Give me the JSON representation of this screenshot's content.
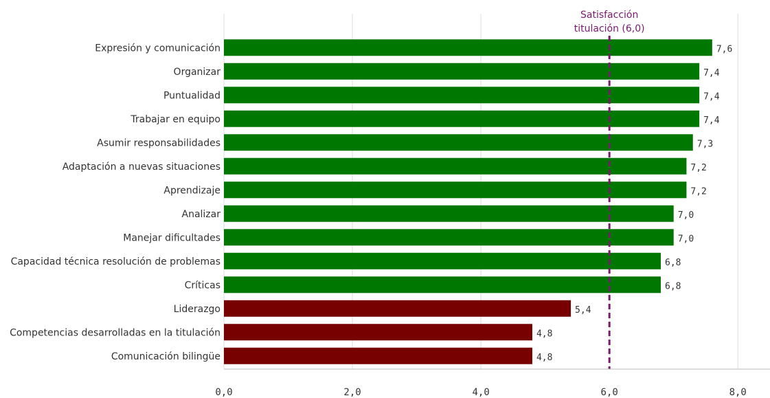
{
  "chart_data": {
    "type": "bar",
    "orientation": "horizontal",
    "categories": [
      "Expresión y comunicación",
      "Organizar",
      "Puntualidad",
      "Trabajar en equipo",
      "Asumir responsabilidades",
      "Adaptación a nuevas situaciones",
      "Aprendizaje",
      "Analizar",
      "Manejar dificultades",
      "Capacidad técnica resolución de problemas",
      "Críticas",
      "Liderazgo",
      "Competencias desarrolladas en la titulación",
      "Comunicación bilingüe"
    ],
    "values": [
      7.6,
      7.4,
      7.4,
      7.4,
      7.3,
      7.2,
      7.2,
      7.0,
      7.0,
      6.8,
      6.8,
      5.4,
      4.8,
      4.8
    ],
    "value_labels": [
      "7,6",
      "7,4",
      "7,4",
      "7,4",
      "7,3",
      "7,2",
      "7,2",
      "7,0",
      "7,0",
      "6,8",
      "6,8",
      "5,4",
      "4,8",
      "4,8"
    ],
    "bar_colors": [
      "#007700",
      "#007700",
      "#007700",
      "#007700",
      "#007700",
      "#007700",
      "#007700",
      "#007700",
      "#007700",
      "#007700",
      "#007700",
      "#770000",
      "#770000",
      "#770000"
    ],
    "xlim": [
      0,
      8.5
    ],
    "x_ticks": [
      0,
      2,
      4,
      6,
      8
    ],
    "x_tick_labels": [
      "0,0",
      "2,0",
      "4,0",
      "6,0",
      "8,0"
    ],
    "grid": "vertical",
    "reference_line": {
      "value": 6.0,
      "label_lines": [
        "Satisfacción",
        "titulación (6,0)"
      ],
      "color": "#7a1a6e"
    },
    "colors": {
      "above": "#007700",
      "below": "#770000",
      "grid": "#dddddd",
      "text": "#333333"
    }
  }
}
